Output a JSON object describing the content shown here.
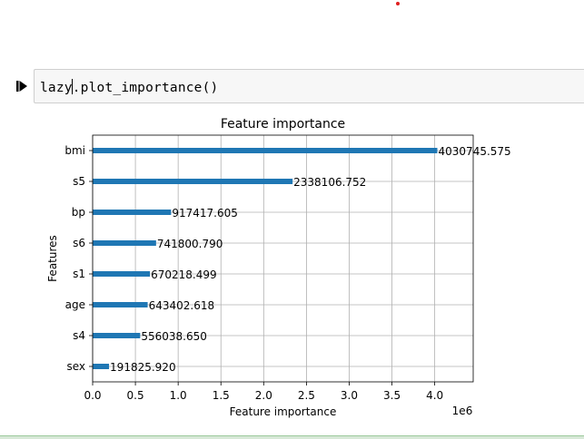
{
  "cell": {
    "code_before_caret": "lazy",
    "code_after_caret": ".plot_importance()"
  },
  "chart_data": {
    "type": "bar",
    "orientation": "horizontal",
    "title": "Feature importance",
    "xlabel": "Feature importance",
    "ylabel": "Features",
    "x_offset_label": "1e6",
    "xlim": [
      0,
      4.45
    ],
    "x_ticks": [
      "0.0",
      "0.5",
      "1.0",
      "1.5",
      "2.0",
      "2.5",
      "3.0",
      "3.5",
      "4.0"
    ],
    "grid": true,
    "bar_color": "#1f77b4",
    "categories": [
      "bmi",
      "s5",
      "bp",
      "s6",
      "s1",
      "age",
      "s4",
      "sex"
    ],
    "values": [
      4030745.575,
      2338106.752,
      917417.605,
      741800.79,
      670218.499,
      643402.618,
      556038.65,
      191825.92
    ],
    "value_labels": [
      "4030745.575",
      "2338106.752",
      "917417.605",
      "741800.790",
      "670218.499",
      "643402.618",
      "556038.650",
      "191825.920"
    ]
  }
}
